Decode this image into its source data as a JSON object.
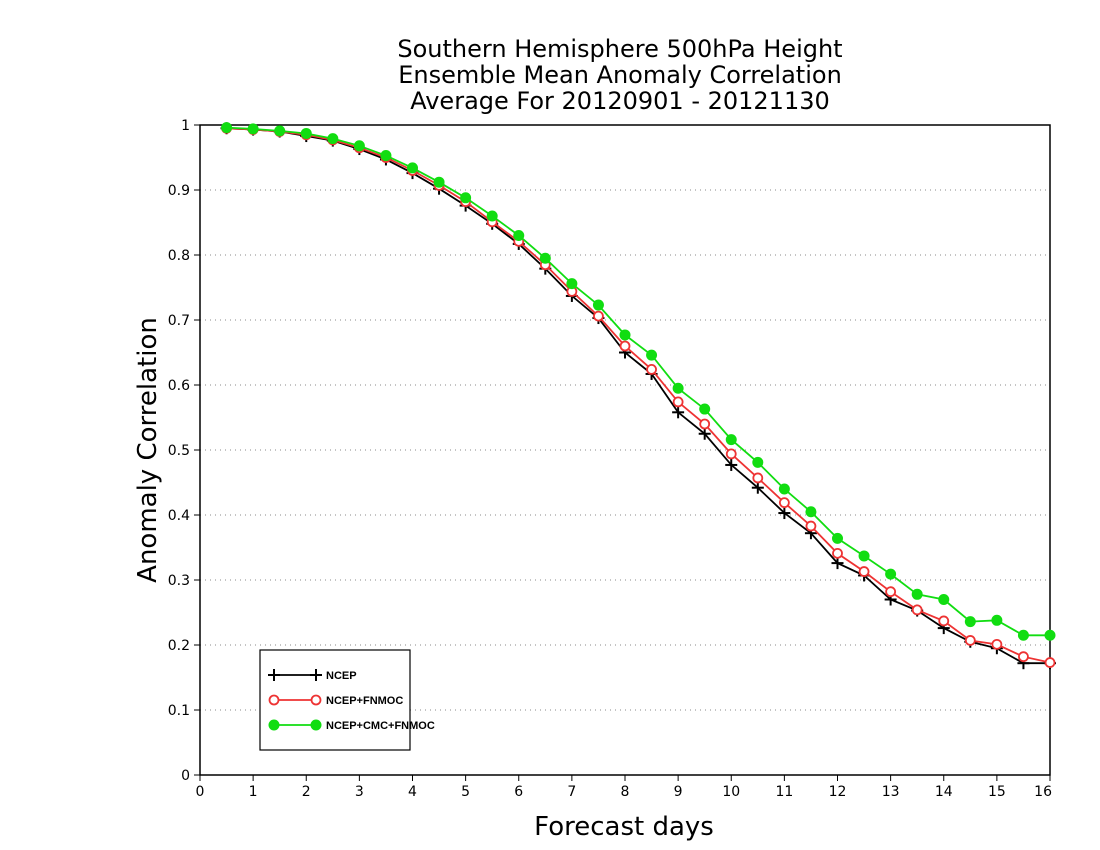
{
  "chart_data": {
    "type": "line",
    "title_lines": [
      "Southern Hemisphere 500hPa Height",
      "Ensemble Mean Anomaly Correlation",
      "Average For 20120901 - 20121130"
    ],
    "xlabel": "Forecast days",
    "ylabel": "Anomaly Correlation",
    "xlim": [
      0,
      16
    ],
    "ylim": [
      0,
      1
    ],
    "x_ticks": [
      "0",
      "1",
      "2",
      "3",
      "4",
      "5",
      "6",
      "7",
      "8",
      "9",
      "10",
      "11",
      "12",
      "13",
      "14",
      "15",
      "16"
    ],
    "y_ticks": [
      "0",
      "0.1",
      "0.2",
      "0.3",
      "0.4",
      "0.5",
      "0.6",
      "0.7",
      "0.8",
      "0.9",
      "1"
    ],
    "grid": "horizontal dotted",
    "legend_placement": "bottom-left",
    "x": [
      0.5,
      1,
      1.5,
      2,
      2.5,
      3,
      3.5,
      4,
      4.5,
      5,
      5.5,
      6,
      6.5,
      7,
      7.5,
      8,
      8.5,
      9,
      9.5,
      10,
      10.5,
      11,
      11.5,
      12,
      12.5,
      13,
      13.5,
      14,
      14.5,
      15,
      15.5,
      16
    ],
    "series": [
      {
        "name": "NCEP",
        "color": "#000000",
        "marker": "plus",
        "values": [
          0.995,
          0.993,
          0.99,
          0.983,
          0.976,
          0.963,
          0.947,
          0.926,
          0.902,
          0.876,
          0.848,
          0.817,
          0.779,
          0.737,
          0.703,
          0.65,
          0.617,
          0.558,
          0.525,
          0.477,
          0.442,
          0.403,
          0.372,
          0.326,
          0.307,
          0.27,
          0.253,
          0.226,
          0.205,
          0.195,
          0.172,
          0.172
        ]
      },
      {
        "name": "NCEP+FNMOC",
        "color": "#ee3333",
        "marker": "open-circle",
        "values": [
          0.995,
          0.993,
          0.99,
          0.985,
          0.977,
          0.965,
          0.95,
          0.93,
          0.907,
          0.882,
          0.851,
          0.821,
          0.785,
          0.744,
          0.706,
          0.66,
          0.624,
          0.574,
          0.54,
          0.494,
          0.457,
          0.419,
          0.383,
          0.341,
          0.313,
          0.282,
          0.254,
          0.237,
          0.207,
          0.201,
          0.182,
          0.173
        ]
      },
      {
        "name": "NCEP+CMC+FNMOC",
        "color": "#11dd11",
        "marker": "filled-circle",
        "values": [
          0.996,
          0.994,
          0.991,
          0.987,
          0.979,
          0.968,
          0.953,
          0.934,
          0.912,
          0.888,
          0.86,
          0.83,
          0.795,
          0.756,
          0.723,
          0.677,
          0.646,
          0.595,
          0.563,
          0.516,
          0.481,
          0.44,
          0.405,
          0.364,
          0.337,
          0.309,
          0.278,
          0.27,
          0.236,
          0.238,
          0.215,
          0.215
        ]
      }
    ]
  }
}
